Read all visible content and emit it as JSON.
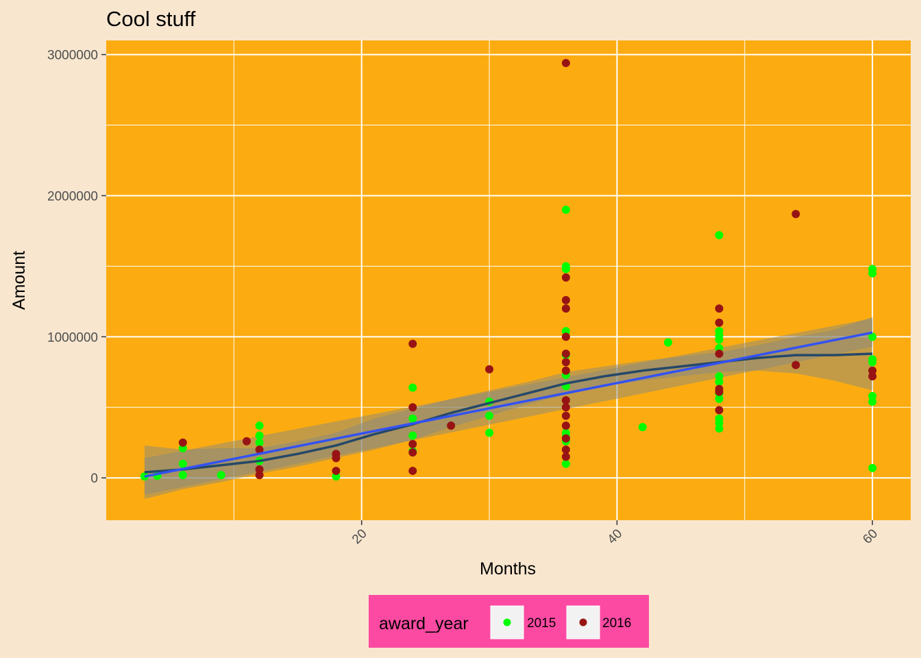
{
  "chart_data": {
    "type": "scatter",
    "title": "Cool stuff",
    "xlabel": "Months",
    "ylabel": "Amount",
    "xlim": [
      0,
      63
    ],
    "ylim": [
      -300000,
      3100000
    ],
    "x_ticks": [
      20,
      40,
      60
    ],
    "x_minor": [
      10,
      30,
      50
    ],
    "y_ticks": [
      0,
      1000000,
      2000000,
      3000000
    ],
    "y_tick_labels": [
      "0",
      "1000000",
      "2000000",
      "3000000"
    ],
    "y_minor": [
      500000,
      1500000,
      2500000
    ],
    "grid": true,
    "legend_position": "bottom",
    "legend_title": "award_year",
    "colors": {
      "panel": "#fcac11",
      "background": "#f8e6cf",
      "legend_bg": "#fc4aa2",
      "linear_fit": "#3352f3",
      "loess_fit": "#254869",
      "band": "#8a8a7e",
      "grid": "#ffffff"
    },
    "series": [
      {
        "name": "2015",
        "color": "#00ff00",
        "points": [
          [
            3,
            10000
          ],
          [
            4,
            15000
          ],
          [
            6,
            210000
          ],
          [
            6,
            100000
          ],
          [
            6,
            20000
          ],
          [
            9,
            20000
          ],
          [
            12,
            370000
          ],
          [
            12,
            300000
          ],
          [
            12,
            250000
          ],
          [
            12,
            120000
          ],
          [
            18,
            10000
          ],
          [
            24,
            640000
          ],
          [
            24,
            420000
          ],
          [
            24,
            300000
          ],
          [
            24,
            190000
          ],
          [
            30,
            540000
          ],
          [
            30,
            440000
          ],
          [
            30,
            320000
          ],
          [
            36,
            1900000
          ],
          [
            36,
            1500000
          ],
          [
            36,
            1480000
          ],
          [
            36,
            1040000
          ],
          [
            36,
            870000
          ],
          [
            36,
            730000
          ],
          [
            36,
            650000
          ],
          [
            36,
            320000
          ],
          [
            36,
            290000
          ],
          [
            36,
            260000
          ],
          [
            36,
            100000
          ],
          [
            42,
            360000
          ],
          [
            44,
            960000
          ],
          [
            48,
            1720000
          ],
          [
            48,
            1040000
          ],
          [
            48,
            1010000
          ],
          [
            48,
            980000
          ],
          [
            48,
            920000
          ],
          [
            48,
            720000
          ],
          [
            48,
            680000
          ],
          [
            48,
            600000
          ],
          [
            48,
            560000
          ],
          [
            48,
            420000
          ],
          [
            48,
            390000
          ],
          [
            48,
            350000
          ],
          [
            60,
            1480000
          ],
          [
            60,
            1450000
          ],
          [
            60,
            1000000
          ],
          [
            60,
            840000
          ],
          [
            60,
            820000
          ],
          [
            60,
            580000
          ],
          [
            60,
            540000
          ],
          [
            60,
            70000
          ]
        ]
      },
      {
        "name": "2016",
        "color": "#981414",
        "points": [
          [
            6,
            250000
          ],
          [
            11,
            260000
          ],
          [
            12,
            200000
          ],
          [
            12,
            60000
          ],
          [
            12,
            20000
          ],
          [
            18,
            170000
          ],
          [
            18,
            140000
          ],
          [
            18,
            50000
          ],
          [
            24,
            950000
          ],
          [
            24,
            500000
          ],
          [
            24,
            240000
          ],
          [
            24,
            180000
          ],
          [
            24,
            50000
          ],
          [
            27,
            370000
          ],
          [
            30,
            770000
          ],
          [
            36,
            2940000
          ],
          [
            36,
            1420000
          ],
          [
            36,
            1260000
          ],
          [
            36,
            1200000
          ],
          [
            36,
            1000000
          ],
          [
            36,
            880000
          ],
          [
            36,
            820000
          ],
          [
            36,
            760000
          ],
          [
            36,
            550000
          ],
          [
            36,
            500000
          ],
          [
            36,
            440000
          ],
          [
            36,
            370000
          ],
          [
            36,
            280000
          ],
          [
            36,
            200000
          ],
          [
            36,
            150000
          ],
          [
            48,
            1200000
          ],
          [
            48,
            1100000
          ],
          [
            48,
            880000
          ],
          [
            48,
            630000
          ],
          [
            48,
            610000
          ],
          [
            48,
            480000
          ],
          [
            54,
            1870000
          ],
          [
            54,
            800000
          ],
          [
            60,
            760000
          ],
          [
            60,
            720000
          ]
        ]
      }
    ],
    "linear_fit": {
      "x": [
        3,
        60
      ],
      "y": [
        10000,
        1030000
      ],
      "ci_low": [
        -120000,
        930000
      ],
      "ci_high": [
        140000,
        1130000
      ]
    },
    "loess_fit": {
      "x": [
        3,
        6,
        9,
        12,
        15,
        18,
        21,
        24,
        27,
        30,
        33,
        36,
        39,
        42,
        45,
        48,
        51,
        54,
        57,
        60
      ],
      "y": [
        40000,
        60000,
        90000,
        120000,
        170000,
        230000,
        310000,
        380000,
        460000,
        530000,
        600000,
        670000,
        720000,
        760000,
        790000,
        820000,
        850000,
        870000,
        870000,
        880000
      ],
      "ci_low": [
        -150000,
        -80000,
        -30000,
        30000,
        80000,
        140000,
        200000,
        270000,
        360000,
        440000,
        520000,
        590000,
        650000,
        690000,
        720000,
        750000,
        760000,
        740000,
        690000,
        620000
      ],
      "ci_high": [
        230000,
        200000,
        210000,
        210000,
        260000,
        320000,
        420000,
        490000,
        560000,
        620000,
        680000,
        750000,
        790000,
        830000,
        860000,
        890000,
        940000,
        1000000,
        1050000,
        1140000
      ]
    }
  }
}
